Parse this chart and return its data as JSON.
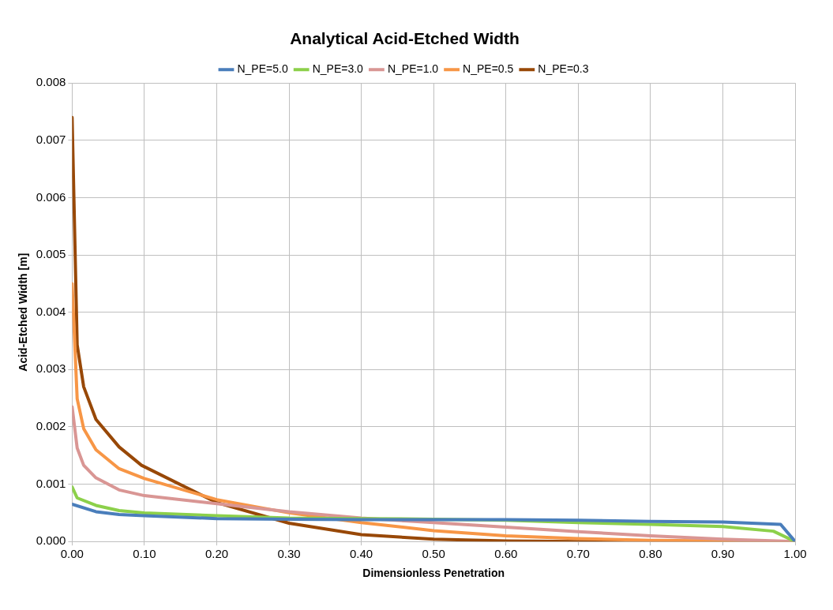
{
  "chart_data": {
    "type": "line",
    "title": "Analytical Acid-Etched Width",
    "xlabel": "Dimensionless Penetration",
    "ylabel": "Acid-Etched Width [m]",
    "legend": "top",
    "grid": true,
    "marker": "none",
    "line_style": "solid",
    "xlim": [
      0,
      1
    ],
    "ylim": [
      0,
      0.008
    ],
    "xticks": [
      {
        "value": 0,
        "label": "0.00"
      },
      {
        "value": 0.1,
        "label": "0.10"
      },
      {
        "value": 0.2,
        "label": "0.20"
      },
      {
        "value": 0.3,
        "label": "0.30"
      },
      {
        "value": 0.4,
        "label": "0.40"
      },
      {
        "value": 0.5,
        "label": "0.50"
      },
      {
        "value": 0.6,
        "label": "0.60"
      },
      {
        "value": 0.7,
        "label": "0.70"
      },
      {
        "value": 0.8,
        "label": "0.80"
      },
      {
        "value": 0.9,
        "label": "0.90"
      },
      {
        "value": 1,
        "label": "1.00"
      }
    ],
    "yticks": [
      {
        "value": 0,
        "label": "0.000"
      },
      {
        "value": 0.001,
        "label": "0.001"
      },
      {
        "value": 0.002,
        "label": "0.002"
      },
      {
        "value": 0.003,
        "label": "0.003"
      },
      {
        "value": 0.004,
        "label": "0.004"
      },
      {
        "value": 0.005,
        "label": "0.005"
      },
      {
        "value": 0.006,
        "label": "0.006"
      },
      {
        "value": 0.007,
        "label": "0.007"
      },
      {
        "value": 0.008,
        "label": "0.008"
      }
    ],
    "series": [
      {
        "name": "N_PE=5.0",
        "color": "#4a7ebb",
        "x": [
          0,
          0.033,
          0.065,
          0.1,
          0.2,
          0.3,
          0.4,
          0.5,
          0.6,
          0.7,
          0.8,
          0.9,
          0.98,
          1
        ],
        "values": [
          0.00065,
          0.00052,
          0.00047,
          0.00045,
          0.0004,
          0.00039,
          0.00038,
          0.00038,
          0.00038,
          0.00037,
          0.00035,
          0.00034,
          0.0003,
          0
        ]
      },
      {
        "name": "N_PE=3.0",
        "color": "#8cd04a",
        "x": [
          0,
          0.007,
          0.033,
          0.065,
          0.1,
          0.2,
          0.3,
          0.4,
          0.5,
          0.6,
          0.7,
          0.8,
          0.9,
          0.97,
          1
        ],
        "values": [
          0.00095,
          0.00076,
          0.00063,
          0.00054,
          0.0005,
          0.00045,
          0.00041,
          0.0004,
          0.00039,
          0.00037,
          0.00033,
          0.0003,
          0.00026,
          0.00018,
          0
        ]
      },
      {
        "name": "N_PE=1.0",
        "color": "#d99694",
        "x": [
          0,
          0.007,
          0.016,
          0.033,
          0.065,
          0.1,
          0.2,
          0.3,
          0.4,
          0.5,
          0.6,
          0.7,
          0.8,
          0.9,
          1
        ],
        "values": [
          0.00235,
          0.00163,
          0.00133,
          0.00111,
          0.0009,
          0.0008,
          0.00066,
          0.00052,
          0.00041,
          0.00033,
          0.00025,
          0.00017,
          0.0001,
          4e-05,
          0
        ]
      },
      {
        "name": "N_PE=0.5",
        "color": "#f79646",
        "x": [
          0,
          0.007,
          0.016,
          0.033,
          0.065,
          0.1,
          0.2,
          0.3,
          0.4,
          0.5,
          0.6,
          0.7,
          0.8,
          0.9,
          1
        ],
        "values": [
          0.0045,
          0.00249,
          0.00197,
          0.0016,
          0.00127,
          0.0011,
          0.00073,
          0.0005,
          0.00033,
          0.00019,
          0.0001,
          5e-05,
          2e-05,
          1e-05,
          0
        ]
      },
      {
        "name": "N_PE=0.3",
        "color": "#984807",
        "x": [
          0,
          0.007,
          0.016,
          0.033,
          0.065,
          0.096,
          0.2,
          0.3,
          0.4,
          0.5,
          0.6,
          0.7,
          0.8,
          0.9,
          1
        ],
        "values": [
          0.0074,
          0.00343,
          0.0027,
          0.00213,
          0.00165,
          0.00133,
          0.00068,
          0.00032,
          0.00012,
          4e-05,
          1e-05,
          0,
          0,
          0,
          0
        ]
      }
    ]
  }
}
